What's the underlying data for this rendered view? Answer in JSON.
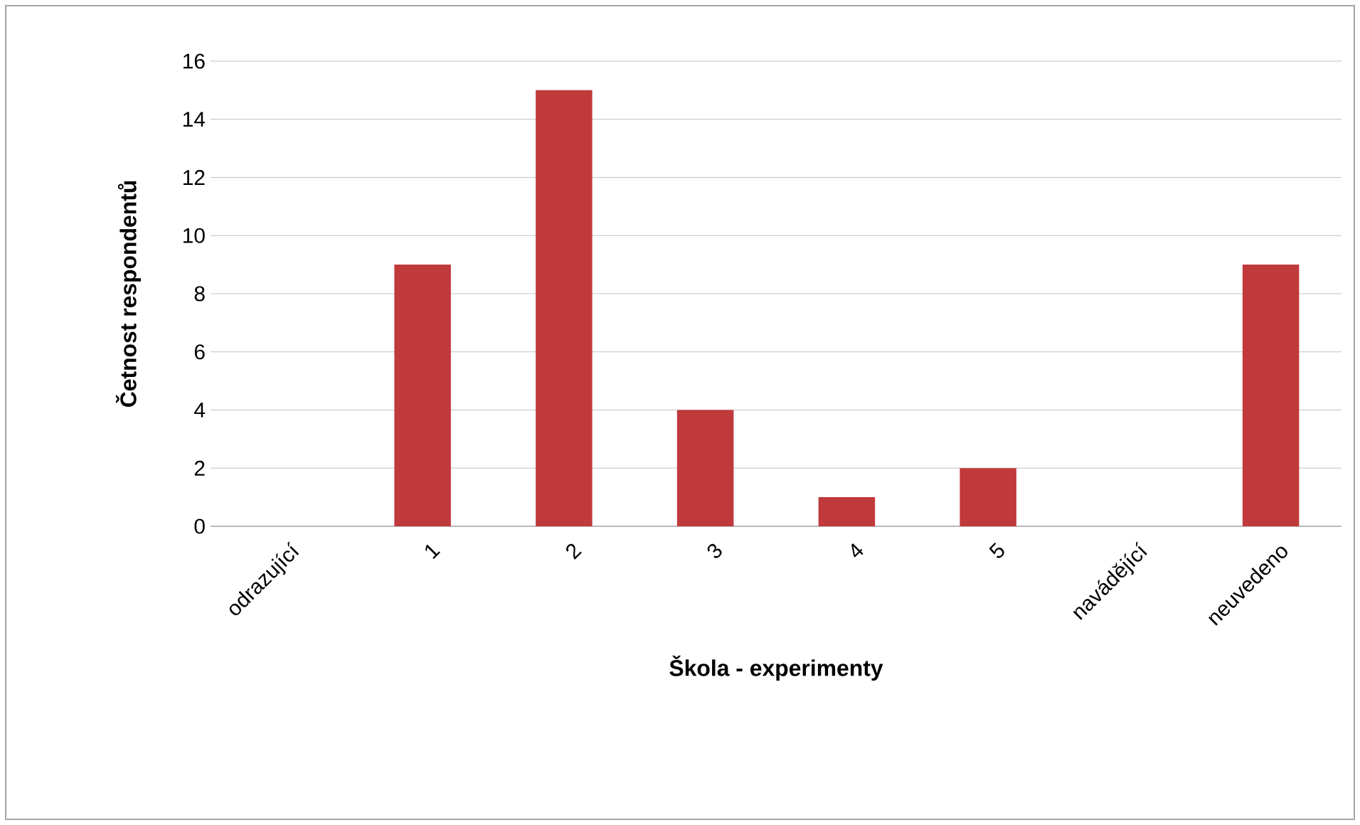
{
  "chart_data": {
    "type": "bar",
    "xlabel": "Škola - experimenty",
    "ylabel": "Četnost respondentů",
    "categories": [
      "odrazující",
      "1",
      "2",
      "3",
      "4",
      "5",
      "navádějící",
      "neuvedeno"
    ],
    "values": [
      0,
      9,
      15,
      4,
      1,
      2,
      0,
      9
    ],
    "color": "#c0393b",
    "ylim": [
      0,
      16
    ],
    "yticks": [
      0,
      2,
      4,
      6,
      8,
      10,
      12,
      14,
      16
    ],
    "grid": "y"
  }
}
